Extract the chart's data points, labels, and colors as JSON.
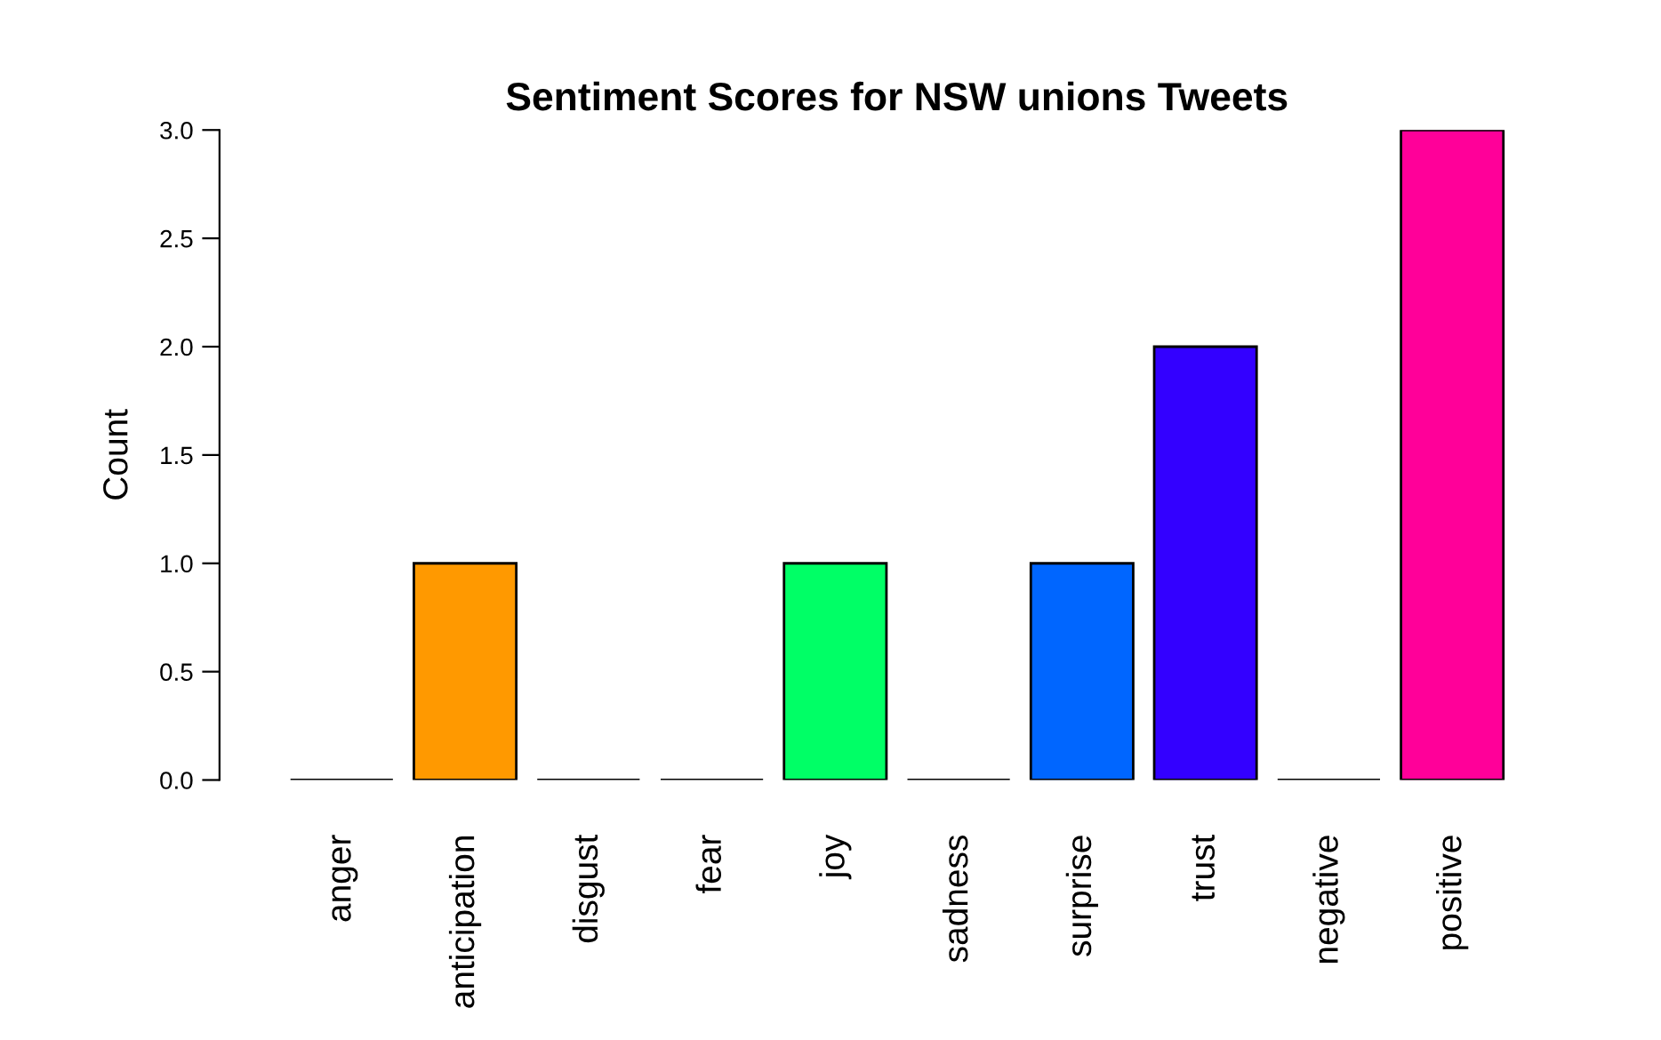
{
  "chart_data": {
    "type": "bar",
    "title": "Sentiment Scores for NSW unions Tweets",
    "ylabel": "Count",
    "categories": [
      "anger",
      "anticipation",
      "disgust",
      "fear",
      "joy",
      "sadness",
      "surprise",
      "trust",
      "negative",
      "positive"
    ],
    "values": [
      0,
      1,
      0,
      0,
      1,
      0,
      1,
      2,
      0,
      3
    ],
    "colors": [
      null,
      "#ff9900",
      null,
      null,
      "#00ff66",
      null,
      "#0066ff",
      "#3300ff",
      null,
      "#ff0099"
    ],
    "ylim": [
      0,
      3
    ],
    "yticks": [
      {
        "value": 0,
        "label": "0.0"
      },
      {
        "value": 0.5,
        "label": "0.5"
      },
      {
        "value": 1,
        "label": "1.0"
      },
      {
        "value": 1.5,
        "label": "1.5"
      },
      {
        "value": 2,
        "label": "2.0"
      },
      {
        "value": 2.5,
        "label": "2.5"
      },
      {
        "value": 3,
        "label": "3.0"
      }
    ],
    "grid": false,
    "legend": false
  }
}
